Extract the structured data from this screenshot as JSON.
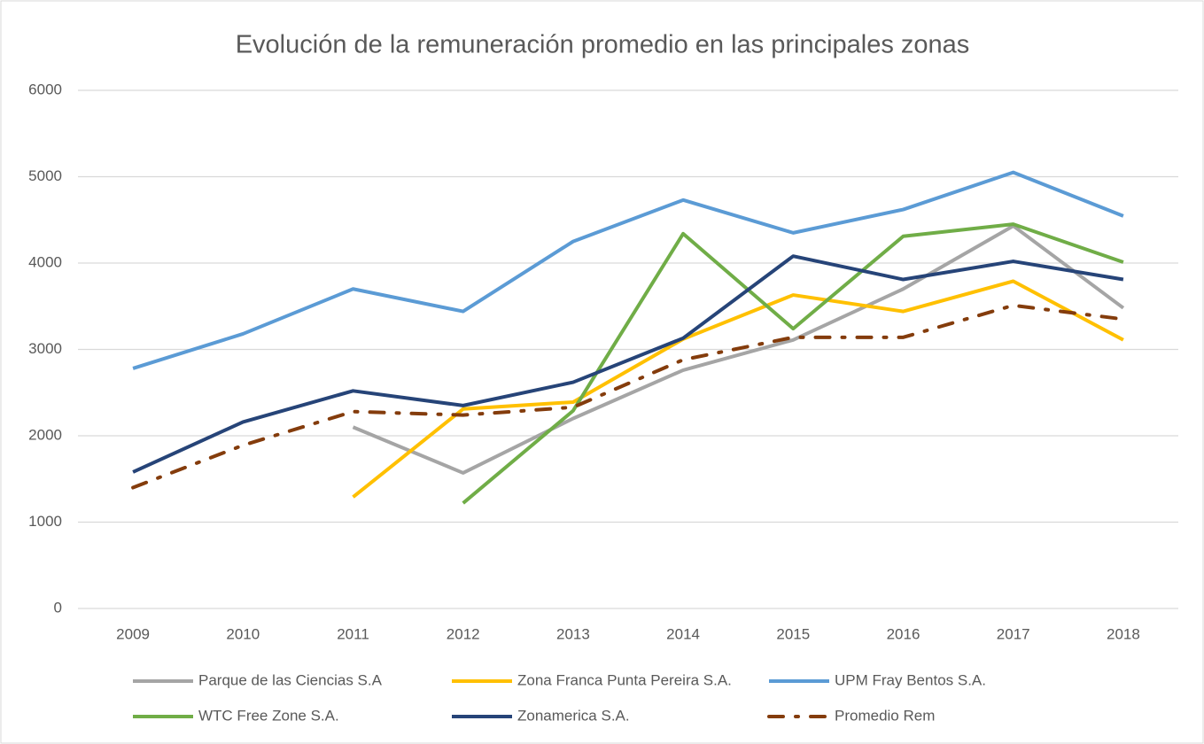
{
  "chart_data": {
    "type": "line",
    "title": "Evolución de la remuneración promedio en las principales zonas",
    "categories": [
      "2009",
      "2010",
      "2011",
      "2012",
      "2013",
      "2014",
      "2015",
      "2016",
      "2017",
      "2018"
    ],
    "series": [
      {
        "name": "Parque de las Ciencias S.A",
        "color": "#a5a5a5",
        "values": [
          null,
          null,
          2100,
          1570,
          2200,
          2760,
          3110,
          3700,
          4430,
          3480
        ]
      },
      {
        "name": "Zona Franca Punta Pereira S.A.",
        "color": "#ffc000",
        "values": [
          null,
          null,
          1290,
          2310,
          2390,
          3120,
          3630,
          3440,
          3790,
          3110
        ]
      },
      {
        "name": "UPM Fray Bentos S.A.",
        "color": "#5b9bd5",
        "values": [
          2780,
          3180,
          3700,
          3440,
          4250,
          4730,
          4350,
          4620,
          5050,
          4545
        ]
      },
      {
        "name": "WTC Free Zone S.A.",
        "color": "#70ad47",
        "values": [
          null,
          null,
          null,
          1220,
          2290,
          4340,
          3240,
          4310,
          4450,
          4010
        ]
      },
      {
        "name": "Zonamerica S.A.",
        "color": "#264478",
        "values": [
          1580,
          2160,
          2520,
          2350,
          2620,
          3130,
          4080,
          3810,
          4020,
          3810
        ]
      },
      {
        "name": "Promedio Rem",
        "color": "#843c0c",
        "dash": "dashdot",
        "values": [
          1400,
          1890,
          2280,
          2240,
          2330,
          2880,
          3140,
          3140,
          3510,
          3350
        ]
      }
    ],
    "ylim": [
      0,
      6000
    ],
    "yticks": [
      0,
      1000,
      2000,
      3000,
      4000,
      5000,
      6000
    ],
    "grid": true,
    "legend": "bottom"
  }
}
